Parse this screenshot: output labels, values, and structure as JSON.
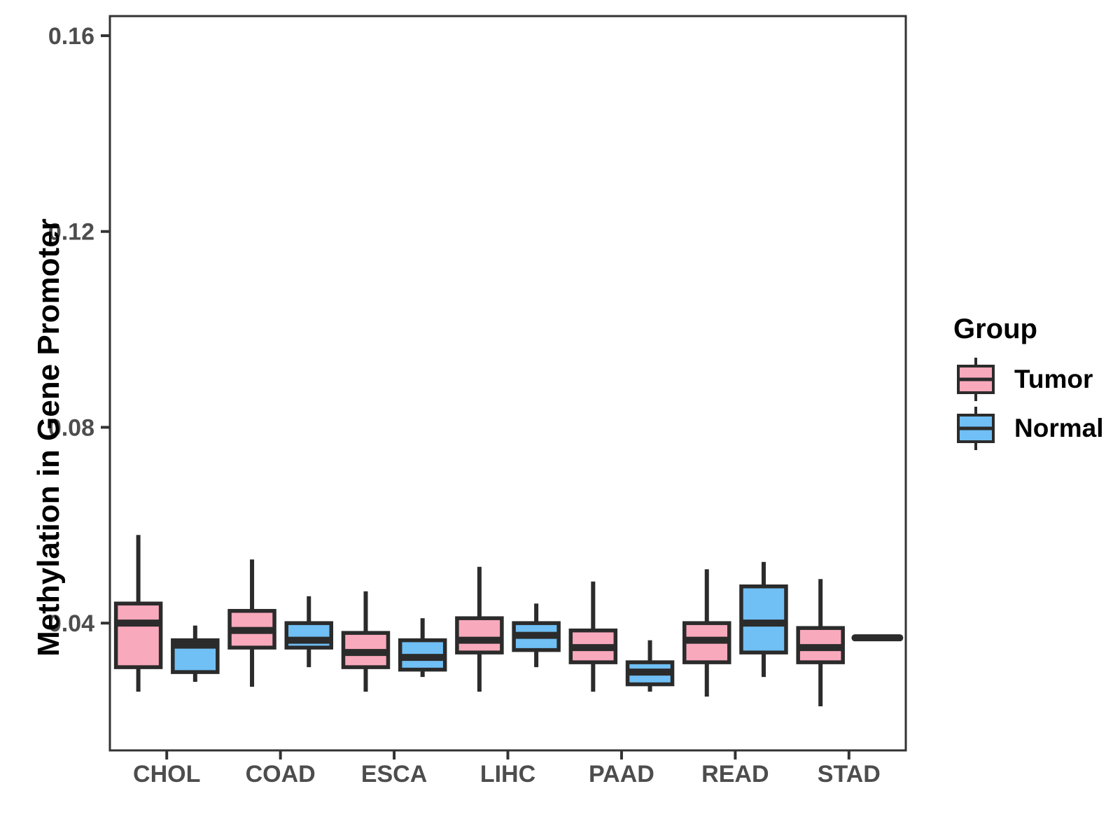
{
  "chart_data": {
    "type": "boxplot",
    "title": "",
    "xlabel": "",
    "ylabel": "Methylation in Gene Promoter",
    "categories": [
      "CHOL",
      "COAD",
      "ESCA",
      "LIHC",
      "PAAD",
      "READ",
      "STAD"
    ],
    "ylim": [
      0.014,
      0.164
    ],
    "yticks": [
      0.04,
      0.08,
      0.12,
      0.16
    ],
    "ytick_labels": [
      "0.04",
      "0.08",
      "0.12",
      "0.16"
    ],
    "grid": false,
    "legend_position": "right",
    "series": [
      {
        "name": "Tumor",
        "color": "#F9A9BC",
        "boxes": [
          {
            "category": "CHOL",
            "low": 0.026,
            "q1": 0.031,
            "median": 0.04,
            "q3": 0.044,
            "high": 0.058
          },
          {
            "category": "COAD",
            "low": 0.027,
            "q1": 0.035,
            "median": 0.0385,
            "q3": 0.0425,
            "high": 0.053
          },
          {
            "category": "ESCA",
            "low": 0.026,
            "q1": 0.031,
            "median": 0.034,
            "q3": 0.038,
            "high": 0.0465
          },
          {
            "category": "LIHC",
            "low": 0.026,
            "q1": 0.034,
            "median": 0.0365,
            "q3": 0.041,
            "high": 0.0515
          },
          {
            "category": "PAAD",
            "low": 0.026,
            "q1": 0.032,
            "median": 0.035,
            "q3": 0.0385,
            "high": 0.0485
          },
          {
            "category": "READ",
            "low": 0.025,
            "q1": 0.032,
            "median": 0.0365,
            "q3": 0.04,
            "high": 0.051
          },
          {
            "category": "STAD",
            "low": 0.023,
            "q1": 0.032,
            "median": 0.035,
            "q3": 0.039,
            "high": 0.049
          }
        ]
      },
      {
        "name": "Normal",
        "color": "#70BFF5",
        "boxes": [
          {
            "category": "CHOL",
            "low": 0.028,
            "q1": 0.03,
            "median": 0.0355,
            "q3": 0.0365,
            "high": 0.0395
          },
          {
            "category": "COAD",
            "low": 0.031,
            "q1": 0.035,
            "median": 0.0365,
            "q3": 0.04,
            "high": 0.0455
          },
          {
            "category": "ESCA",
            "low": 0.029,
            "q1": 0.0305,
            "median": 0.033,
            "q3": 0.0365,
            "high": 0.041
          },
          {
            "category": "LIHC",
            "low": 0.031,
            "q1": 0.0345,
            "median": 0.0375,
            "q3": 0.04,
            "high": 0.044
          },
          {
            "category": "PAAD",
            "low": 0.026,
            "q1": 0.0275,
            "median": 0.03,
            "q3": 0.032,
            "high": 0.0365
          },
          {
            "category": "READ",
            "low": 0.029,
            "q1": 0.034,
            "median": 0.04,
            "q3": 0.0475,
            "high": 0.0525
          },
          {
            "category": "STAD",
            "low": 0.037,
            "q1": 0.037,
            "median": 0.037,
            "q3": 0.037,
            "high": 0.037
          }
        ]
      }
    ]
  },
  "legend": {
    "title": "Group",
    "entries": [
      {
        "label": "Tumor",
        "color": "#F9A9BC"
      },
      {
        "label": "Normal",
        "color": "#70BFF5"
      }
    ]
  },
  "colors": {
    "box_stroke": "#2B2B2B",
    "axis_line": "#333333",
    "tick_mark": "#333333",
    "tick_label": "#4D4D4D",
    "axis_title": "#000000",
    "background": "#FFFFFF"
  }
}
